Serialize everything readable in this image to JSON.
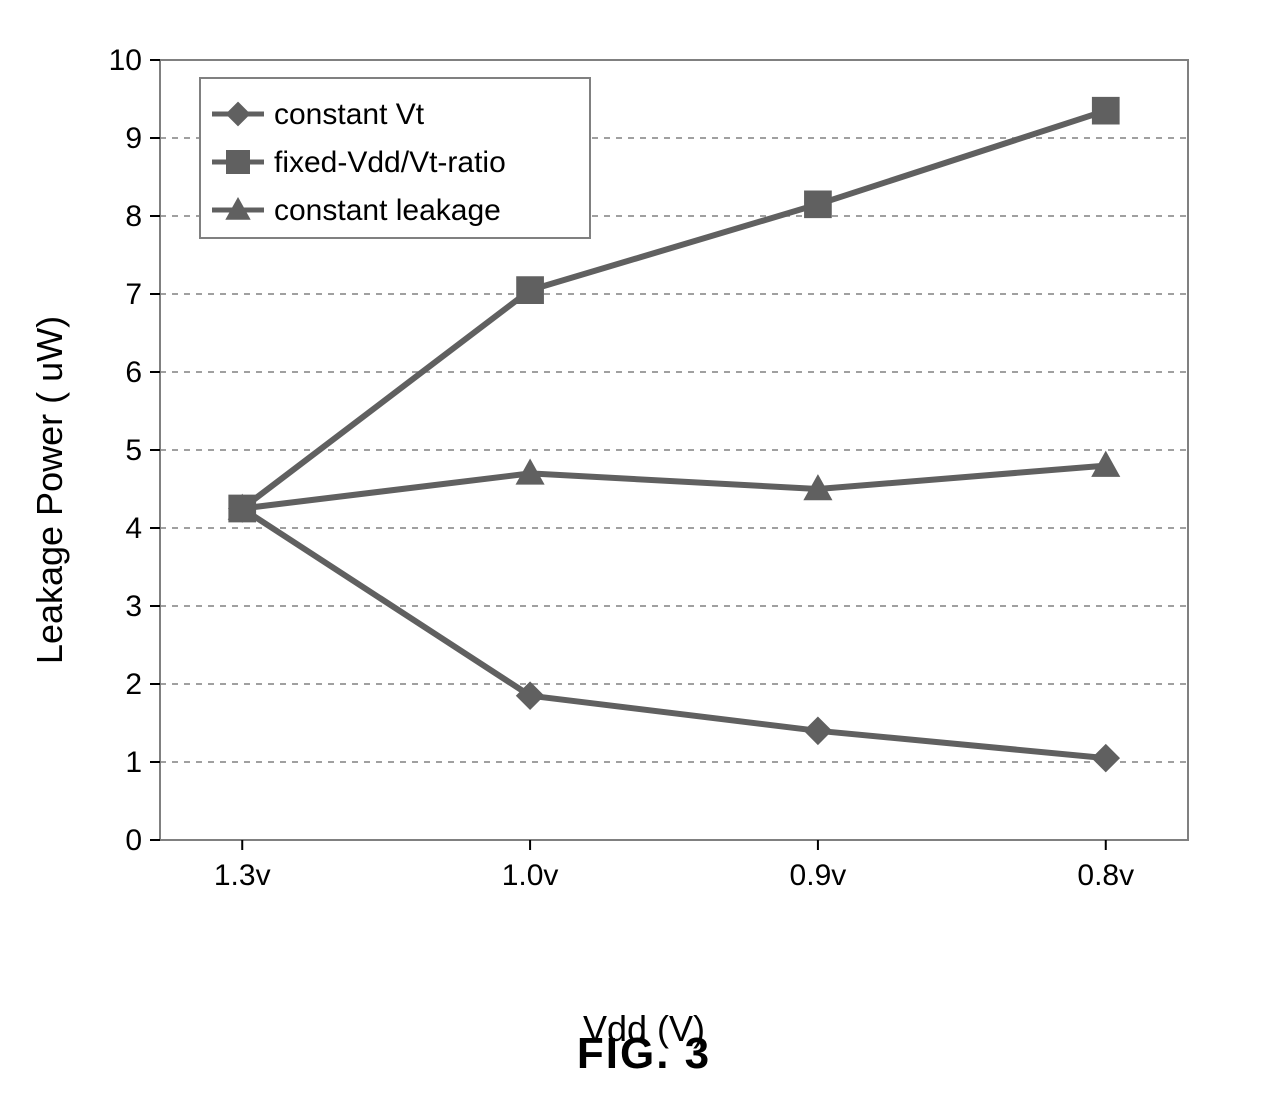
{
  "chart": {
    "type": "line",
    "xlabel": "Vdd (V)",
    "ylabel": "Leakage Power ( uW)",
    "caption": "FIG. 3",
    "tick_fontsize": 30,
    "label_fontsize": 36,
    "caption_fontsize": 44,
    "legend_fontsize": 30,
    "background_color": "#ffffff",
    "plot_border_color": "#808080",
    "grid_color": "#808080",
    "grid_dash": "6,6",
    "tick_color": "#000000",
    "line_color": "#606060",
    "line_width": 6,
    "marker_size": 18,
    "ylim": [
      0,
      10
    ],
    "ytick_step": 1,
    "yticks": [
      "0",
      "1",
      "2",
      "3",
      "4",
      "5",
      "6",
      "7",
      "8",
      "9",
      "10"
    ],
    "x_categories": [
      "1.3v",
      "1.0v",
      "0.9v",
      "0.8v"
    ],
    "series": [
      {
        "name": "constant Vt",
        "marker": "diamond",
        "colors": {
          "stroke": "#606060",
          "fill": "#606060"
        },
        "values": [
          4.25,
          1.85,
          1.4,
          1.05
        ]
      },
      {
        "name": "fixed-Vdd/Vt-ratio",
        "marker": "square",
        "colors": {
          "stroke": "#606060",
          "fill": "#606060"
        },
        "values": [
          4.25,
          7.05,
          8.15,
          9.35
        ]
      },
      {
        "name": "constant leakage",
        "marker": "triangle",
        "colors": {
          "stroke": "#606060",
          "fill": "#606060"
        },
        "values": [
          4.25,
          4.7,
          4.5,
          4.8
        ]
      }
    ],
    "legend": {
      "position": "top-left-inside",
      "border_color": "#808080",
      "background": "#ffffff"
    }
  }
}
